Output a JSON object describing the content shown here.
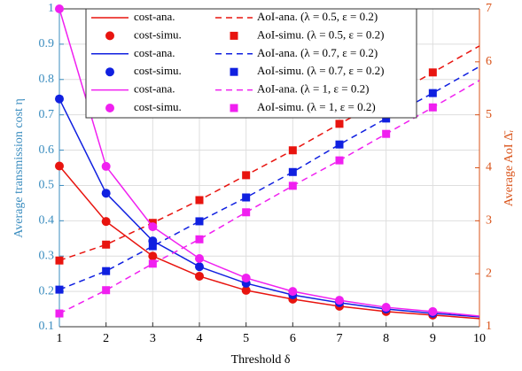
{
  "chart_data": {
    "type": "line",
    "xlabel": "Threshold δ",
    "ylabel": "Average transmission cost η",
    "y2label": "Average AoI Δ̄ᵣ",
    "xlim": [
      1,
      10
    ],
    "xticks": [
      1,
      2,
      3,
      4,
      5,
      6,
      7,
      8,
      9,
      10
    ],
    "ylim": [
      0.1,
      1
    ],
    "yticks": [
      0.1,
      0.2,
      0.3,
      0.4,
      0.5,
      0.6,
      0.7,
      0.8,
      0.9,
      1
    ],
    "y2lim": [
      1,
      7
    ],
    "y2ticks": [
      1,
      2,
      3,
      4,
      5,
      6,
      7
    ],
    "grid": true,
    "ycolor": "#3b8dbf",
    "y2color": "#d95319",
    "series": [
      {
        "name": "cost-ana.",
        "color": "#e8140f",
        "style": "solid",
        "axis": "y",
        "x": [
          1,
          2,
          3,
          4,
          5,
          6,
          7,
          8,
          9,
          10
        ],
        "values": [
          0.555,
          0.398,
          0.3,
          0.243,
          0.203,
          0.178,
          0.158,
          0.143,
          0.133,
          0.123
        ]
      },
      {
        "name": "AoI-ana. (λ = 0.5, ε = 0.2)",
        "color": "#e8140f",
        "style": "dashed",
        "axis": "y2",
        "x": [
          1,
          2,
          3,
          4,
          5,
          6,
          7,
          8,
          9,
          10
        ],
        "values": [
          2.25,
          2.55,
          2.96,
          3.39,
          3.86,
          4.33,
          4.83,
          5.3,
          5.8,
          6.3
        ]
      },
      {
        "name": "cost-simu.",
        "color": "#e8140f",
        "style": "circle",
        "axis": "y",
        "x": [
          1,
          2,
          3,
          4,
          5,
          6,
          7,
          8,
          9
        ],
        "values": [
          0.555,
          0.398,
          0.3,
          0.243,
          0.203,
          0.178,
          0.158,
          0.143,
          0.133
        ]
      },
      {
        "name": "AoI-simu. (λ = 0.5, ε = 0.2)",
        "color": "#e8140f",
        "style": "square",
        "axis": "y2",
        "x": [
          1,
          2,
          3,
          4,
          5,
          6,
          7,
          8,
          9
        ],
        "values": [
          2.25,
          2.55,
          2.96,
          3.39,
          3.86,
          4.33,
          4.83,
          5.3,
          5.8
        ]
      },
      {
        "name": "cost-ana.",
        "color": "#1020e0",
        "style": "solid",
        "axis": "y",
        "x": [
          1,
          2,
          3,
          4,
          5,
          6,
          7,
          8,
          9,
          10
        ],
        "values": [
          0.745,
          0.478,
          0.343,
          0.27,
          0.223,
          0.19,
          0.168,
          0.15,
          0.138,
          0.128
        ]
      },
      {
        "name": "AoI-ana. (λ = 0.7, ε = 0.2)",
        "color": "#1020e0",
        "style": "dashed",
        "axis": "y2",
        "x": [
          1,
          2,
          3,
          4,
          5,
          6,
          7,
          8,
          9,
          10
        ],
        "values": [
          1.7,
          2.05,
          2.52,
          2.99,
          3.44,
          3.92,
          4.44,
          4.93,
          5.41,
          5.91
        ]
      },
      {
        "name": "cost-simu.",
        "color": "#1020e0",
        "style": "circle",
        "axis": "y",
        "x": [
          1,
          2,
          3,
          4,
          5,
          6,
          7,
          8,
          9
        ],
        "values": [
          0.745,
          0.478,
          0.343,
          0.27,
          0.223,
          0.19,
          0.168,
          0.15,
          0.138
        ]
      },
      {
        "name": "AoI-simu. (λ = 0.7, ε = 0.2)",
        "color": "#1020e0",
        "style": "square",
        "axis": "y2",
        "x": [
          1,
          2,
          3,
          4,
          5,
          6,
          7,
          8,
          9
        ],
        "values": [
          1.7,
          2.05,
          2.52,
          2.99,
          3.44,
          3.92,
          4.44,
          4.93,
          5.41
        ]
      },
      {
        "name": "cost-ana.",
        "color": "#f020f0",
        "style": "solid",
        "axis": "y",
        "x": [
          1,
          2,
          3,
          4,
          5,
          6,
          7,
          8,
          9,
          10
        ],
        "values": [
          1.0,
          0.554,
          0.383,
          0.293,
          0.238,
          0.2,
          0.175,
          0.155,
          0.143,
          0.13
        ]
      },
      {
        "name": "AoI-ana. (λ = 1, ε = 0.2)",
        "color": "#f020f0",
        "style": "dashed",
        "axis": "y2",
        "x": [
          1,
          2,
          3,
          4,
          5,
          6,
          7,
          8,
          9,
          10
        ],
        "values": [
          1.25,
          1.69,
          2.19,
          2.65,
          3.16,
          3.66,
          4.14,
          4.64,
          5.14,
          5.65
        ]
      },
      {
        "name": "cost-simu.",
        "color": "#f020f0",
        "style": "circle",
        "axis": "y",
        "x": [
          1,
          2,
          3,
          4,
          5,
          6,
          7,
          8,
          9
        ],
        "values": [
          1.0,
          0.554,
          0.383,
          0.293,
          0.238,
          0.2,
          0.175,
          0.155,
          0.143
        ]
      },
      {
        "name": "AoI-simu. (λ = 1, ε = 0.2)",
        "color": "#f020f0",
        "style": "square",
        "axis": "y2",
        "x": [
          1,
          2,
          3,
          4,
          5,
          6,
          7,
          8,
          9
        ],
        "values": [
          1.25,
          1.69,
          2.19,
          2.65,
          3.16,
          3.66,
          4.14,
          4.64,
          5.14
        ]
      }
    ]
  }
}
